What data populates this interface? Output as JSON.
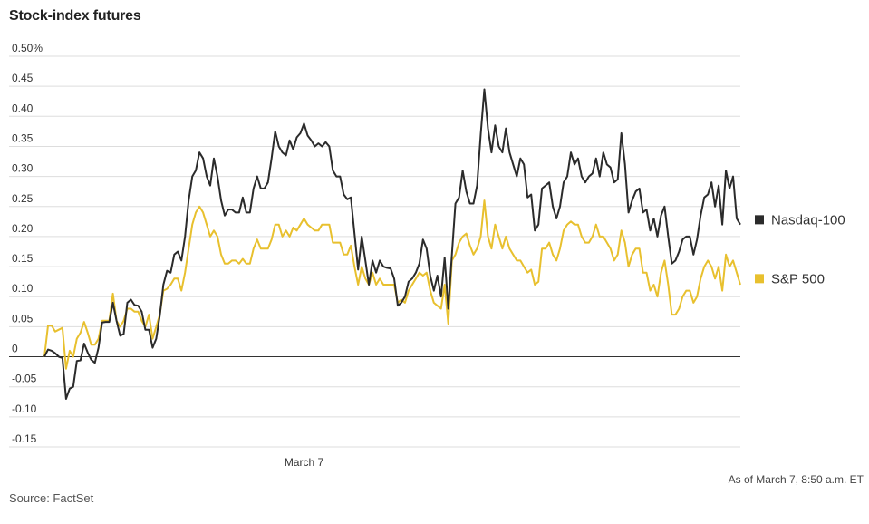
{
  "title": "Stock-index futures",
  "note": "As of March 7, 8:50 a.m. ET",
  "source": "Source: FactSet",
  "colors": {
    "nasdaq": "#2b2b2b",
    "sp500": "#e8c02e",
    "grid": "#dddddd",
    "zero": "#333333"
  },
  "chart_data": {
    "type": "line",
    "title": "Stock-index futures",
    "xlabel": "",
    "ylabel": "",
    "ylim": [
      -0.15,
      0.5
    ],
    "y_ticks": [
      {
        "value": 0.5,
        "label": "0.50%"
      },
      {
        "value": 0.45,
        "label": "0.45"
      },
      {
        "value": 0.4,
        "label": "0.40"
      },
      {
        "value": 0.35,
        "label": "0.35"
      },
      {
        "value": 0.3,
        "label": "0.30"
      },
      {
        "value": 0.25,
        "label": "0.25"
      },
      {
        "value": 0.2,
        "label": "0.20"
      },
      {
        "value": 0.15,
        "label": "0.15"
      },
      {
        "value": 0.1,
        "label": "0.10"
      },
      {
        "value": 0.05,
        "label": "0.05"
      },
      {
        "value": 0,
        "label": "0"
      },
      {
        "value": -0.05,
        "label": "-0.05"
      },
      {
        "value": -0.1,
        "label": "-0.10"
      },
      {
        "value": -0.15,
        "label": "-0.15"
      }
    ],
    "x_tick": {
      "label": "March 7",
      "index": 72
    },
    "grid": true,
    "legend": "right",
    "series": [
      {
        "name": "Nasdaq-100",
        "values": [
          0.0,
          0.012,
          0.01,
          0.006,
          0.0,
          -0.002,
          -0.07,
          -0.053,
          -0.05,
          -0.007,
          -0.006,
          0.022,
          0.007,
          -0.005,
          -0.01,
          0.015,
          0.057,
          0.058,
          0.058,
          0.09,
          0.06,
          0.035,
          0.038,
          0.09,
          0.095,
          0.086,
          0.085,
          0.075,
          0.045,
          0.045,
          0.015,
          0.03,
          0.068,
          0.12,
          0.143,
          0.14,
          0.17,
          0.175,
          0.16,
          0.2,
          0.26,
          0.3,
          0.31,
          0.34,
          0.33,
          0.3,
          0.285,
          0.33,
          0.3,
          0.26,
          0.235,
          0.245,
          0.245,
          0.24,
          0.24,
          0.265,
          0.24,
          0.24,
          0.28,
          0.3,
          0.28,
          0.28,
          0.29,
          0.33,
          0.375,
          0.35,
          0.34,
          0.335,
          0.36,
          0.345,
          0.365,
          0.372,
          0.388,
          0.368,
          0.36,
          0.35,
          0.355,
          0.35,
          0.357,
          0.35,
          0.31,
          0.3,
          0.3,
          0.27,
          0.262,
          0.265,
          0.205,
          0.145,
          0.2,
          0.16,
          0.12,
          0.16,
          0.14,
          0.16,
          0.15,
          0.148,
          0.147,
          0.13,
          0.085,
          0.09,
          0.1,
          0.125,
          0.13,
          0.14,
          0.155,
          0.195,
          0.18,
          0.135,
          0.11,
          0.135,
          0.1,
          0.165,
          0.08,
          0.17,
          0.255,
          0.265,
          0.31,
          0.275,
          0.255,
          0.255,
          0.285,
          0.37,
          0.445,
          0.38,
          0.34,
          0.385,
          0.35,
          0.34,
          0.38,
          0.34,
          0.32,
          0.3,
          0.33,
          0.32,
          0.265,
          0.27,
          0.21,
          0.22,
          0.28,
          0.285,
          0.29,
          0.25,
          0.23,
          0.25,
          0.29,
          0.3,
          0.34,
          0.32,
          0.33,
          0.3,
          0.29,
          0.3,
          0.305,
          0.33,
          0.3,
          0.34,
          0.32,
          0.315,
          0.29,
          0.295,
          0.372,
          0.32,
          0.24,
          0.26,
          0.275,
          0.28,
          0.24,
          0.245,
          0.21,
          0.23,
          0.2,
          0.235,
          0.25,
          0.2,
          0.155,
          0.16,
          0.175,
          0.195,
          0.2,
          0.2,
          0.17,
          0.195,
          0.235,
          0.265,
          0.27,
          0.29,
          0.25,
          0.285,
          0.22,
          0.31,
          0.28,
          0.3,
          0.23,
          0.22
        ]
      },
      {
        "name": "S&P 500",
        "values": [
          0.0,
          0.052,
          0.052,
          0.042,
          0.045,
          0.048,
          -0.02,
          0.01,
          0.0,
          0.03,
          0.04,
          0.058,
          0.04,
          0.02,
          0.02,
          0.03,
          0.06,
          0.06,
          0.06,
          0.105,
          0.06,
          0.05,
          0.06,
          0.08,
          0.08,
          0.075,
          0.075,
          0.06,
          0.05,
          0.07,
          0.03,
          0.05,
          0.07,
          0.11,
          0.113,
          0.12,
          0.13,
          0.13,
          0.11,
          0.14,
          0.18,
          0.22,
          0.24,
          0.25,
          0.24,
          0.22,
          0.2,
          0.21,
          0.2,
          0.17,
          0.155,
          0.155,
          0.16,
          0.16,
          0.155,
          0.163,
          0.155,
          0.155,
          0.18,
          0.195,
          0.18,
          0.18,
          0.18,
          0.195,
          0.22,
          0.22,
          0.2,
          0.21,
          0.2,
          0.215,
          0.21,
          0.22,
          0.23,
          0.22,
          0.215,
          0.21,
          0.21,
          0.22,
          0.22,
          0.22,
          0.19,
          0.19,
          0.19,
          0.17,
          0.17,
          0.185,
          0.15,
          0.12,
          0.15,
          0.13,
          0.12,
          0.14,
          0.12,
          0.13,
          0.12,
          0.12,
          0.12,
          0.12,
          0.09,
          0.095,
          0.09,
          0.11,
          0.12,
          0.13,
          0.14,
          0.135,
          0.14,
          0.11,
          0.09,
          0.085,
          0.08,
          0.12,
          0.055,
          0.16,
          0.17,
          0.19,
          0.2,
          0.205,
          0.185,
          0.17,
          0.18,
          0.2,
          0.26,
          0.2,
          0.18,
          0.22,
          0.2,
          0.18,
          0.2,
          0.18,
          0.17,
          0.16,
          0.16,
          0.15,
          0.14,
          0.145,
          0.12,
          0.125,
          0.18,
          0.18,
          0.19,
          0.17,
          0.16,
          0.18,
          0.21,
          0.22,
          0.225,
          0.22,
          0.22,
          0.2,
          0.19,
          0.19,
          0.2,
          0.22,
          0.2,
          0.2,
          0.19,
          0.18,
          0.16,
          0.17,
          0.21,
          0.19,
          0.15,
          0.17,
          0.18,
          0.18,
          0.14,
          0.14,
          0.11,
          0.12,
          0.1,
          0.14,
          0.16,
          0.12,
          0.07,
          0.07,
          0.08,
          0.1,
          0.11,
          0.11,
          0.09,
          0.1,
          0.13,
          0.15,
          0.16,
          0.15,
          0.13,
          0.15,
          0.11,
          0.17,
          0.15,
          0.16,
          0.14,
          0.12
        ]
      }
    ]
  }
}
